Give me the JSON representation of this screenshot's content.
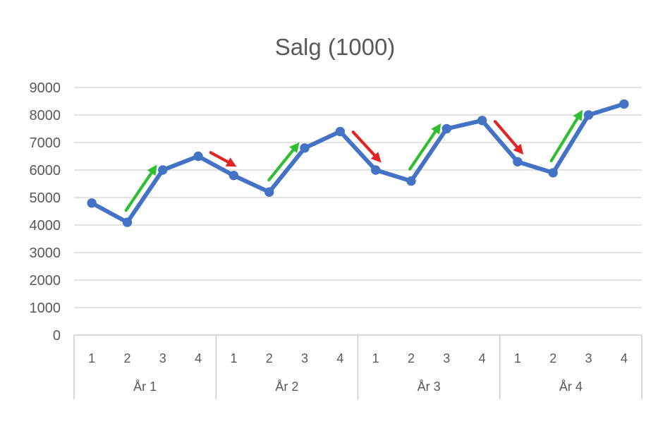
{
  "chart_data": {
    "type": "line",
    "title": "Salg (1000)",
    "legend": "none",
    "grid": true,
    "y_axis": {
      "min": 0,
      "max": 9000,
      "step": 1000,
      "tick_labels": [
        "0",
        "1000",
        "2000",
        "3000",
        "4000",
        "5000",
        "6000",
        "7000",
        "8000",
        "9000"
      ]
    },
    "x_axis": {
      "quarter_labels": [
        "1",
        "2",
        "3",
        "4"
      ],
      "year_labels": [
        "År 1",
        "År 2",
        "År 3",
        "År 4"
      ]
    },
    "series": [
      {
        "name": "Salg",
        "values": [
          4800,
          4100,
          6000,
          6500,
          5800,
          5200,
          6800,
          7400,
          6000,
          5600,
          7500,
          7800,
          6300,
          5900,
          8000,
          8400
        ]
      }
    ],
    "annotations": [
      {
        "type": "arrow",
        "trend": "up",
        "from_point": 1,
        "to_point": 2
      },
      {
        "type": "arrow",
        "trend": "down",
        "from_point": 3,
        "to_point": 4
      },
      {
        "type": "arrow",
        "trend": "up",
        "from_point": 5,
        "to_point": 6
      },
      {
        "type": "arrow",
        "trend": "down",
        "from_point": 7,
        "to_point": 8
      },
      {
        "type": "arrow",
        "trend": "up",
        "from_point": 9,
        "to_point": 10
      },
      {
        "type": "arrow",
        "trend": "down",
        "from_point": 11,
        "to_point": 12
      },
      {
        "type": "arrow",
        "trend": "up",
        "from_point": 13,
        "to_point": 14
      }
    ],
    "colors": {
      "series_line": "#4472c4",
      "up_arrow": "#2fbe2f",
      "down_arrow": "#e02424",
      "axis_text": "#595959",
      "title_text": "#595959",
      "gridline": "#d9d9d9",
      "table_border": "#cbcbcb"
    }
  }
}
